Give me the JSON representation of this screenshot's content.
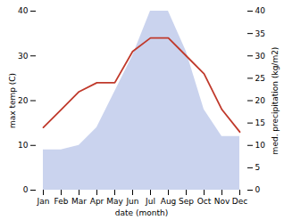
{
  "chart_data": {
    "type": "line",
    "xlabel": "date (month)",
    "ylabel": "max temp (C)",
    "y2label": "med. precipitation (kg/m2)",
    "categories": [
      "Jan",
      "Feb",
      "Mar",
      "Apr",
      "May",
      "Jun",
      "Jul",
      "Aug",
      "Sep",
      "Oct",
      "Nov",
      "Dec"
    ],
    "series": [
      {
        "type": "area",
        "axis": "y2",
        "color": "#b8c4e8",
        "values": [
          9,
          9,
          10,
          14,
          22,
          30,
          40,
          40,
          31,
          18,
          12,
          12
        ]
      },
      {
        "type": "line",
        "axis": "y",
        "color": "#c0392b",
        "values": [
          14,
          18,
          22,
          24,
          24,
          31,
          34,
          34,
          30,
          26,
          18,
          13
        ]
      }
    ],
    "ylim": [
      0,
      40
    ],
    "yticks": [
      0,
      10,
      20,
      30,
      40
    ],
    "y2lim": [
      0,
      40
    ],
    "y2ticks": [
      0,
      5,
      10,
      15,
      20,
      25,
      30,
      35,
      40
    ],
    "grid": false
  }
}
